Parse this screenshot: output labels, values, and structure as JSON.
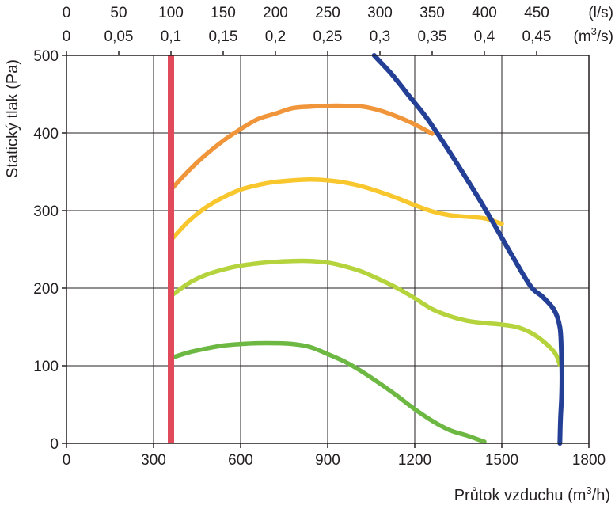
{
  "chart_data": {
    "type": "line",
    "title": "",
    "xlabel": {
      "text": "Průtok vzduchu (m",
      "sup": "3",
      "end": "/h)"
    },
    "ylabel": "Statický tlak (Pa)",
    "xlim": [
      0,
      1800
    ],
    "ylim": [
      0,
      500
    ],
    "grid": true,
    "x_ticks": [
      "0",
      "300",
      "600",
      "900",
      "1200",
      "1500",
      "1800"
    ],
    "x_tick_values": [
      0,
      300,
      600,
      900,
      1200,
      1500,
      1800
    ],
    "y_ticks": [
      "0",
      "100",
      "200",
      "300",
      "400",
      "500"
    ],
    "y_tick_values": [
      0,
      100,
      200,
      300,
      400,
      500
    ],
    "top_axis_ls": {
      "unit": "(l/s)",
      "ticks": [
        "0",
        "50",
        "100",
        "150",
        "200",
        "250",
        "300",
        "350",
        "400",
        "450"
      ],
      "tick_values": [
        0,
        50,
        100,
        150,
        200,
        250,
        300,
        350,
        400,
        450
      ]
    },
    "top_axis_m3s": {
      "unit": {
        "text": "(m",
        "sup": "3",
        "end": "/s)"
      },
      "ticks": [
        "0",
        "0,05",
        "0,1",
        "0,15",
        "0,2",
        "0,25",
        "0,3",
        "0,35",
        "0,4",
        "0,45"
      ],
      "tick_values": [
        0,
        0.05,
        0.1,
        0.15,
        0.2,
        0.25,
        0.3,
        0.35,
        0.4,
        0.45
      ]
    },
    "vertical_marker": {
      "x": 360,
      "color": "#e04a5a"
    },
    "series": [
      {
        "color": "#f0953a",
        "x": [
          360,
          420,
          480,
          540,
          600,
          660,
          720,
          780,
          840,
          900,
          960,
          1020,
          1080,
          1140,
          1200,
          1260
        ],
        "y": [
          327,
          351,
          372,
          390,
          405,
          418,
          425,
          432,
          434,
          435,
          435,
          434,
          429,
          421,
          411,
          399
        ]
      },
      {
        "color": "#f8c72e",
        "x": [
          360,
          420,
          480,
          540,
          600,
          660,
          720,
          780,
          840,
          900,
          960,
          1020,
          1080,
          1140,
          1200,
          1260,
          1320,
          1380,
          1440,
          1500
        ],
        "y": [
          262,
          286,
          304,
          317,
          327,
          333,
          337,
          339,
          340,
          339,
          336,
          331,
          324,
          316,
          307,
          299,
          294,
          292,
          290,
          283
        ]
      },
      {
        "color": "#b5d33c",
        "x": [
          360,
          420,
          480,
          540,
          600,
          660,
          720,
          780,
          840,
          900,
          960,
          1020,
          1080,
          1140,
          1200,
          1260,
          1320,
          1380,
          1440,
          1500,
          1560,
          1620,
          1680,
          1700
        ],
        "y": [
          190,
          206,
          217,
          224,
          229,
          232,
          234,
          235,
          235,
          233,
          228,
          221,
          211,
          200,
          187,
          173,
          164,
          158,
          155,
          153,
          149,
          138,
          118,
          101
        ]
      },
      {
        "color": "#6cb843",
        "x": [
          360,
          420,
          480,
          540,
          600,
          660,
          720,
          780,
          840,
          900,
          960,
          1020,
          1080,
          1140,
          1200,
          1260,
          1320,
          1380,
          1440
        ],
        "y": [
          110,
          117,
          122,
          126,
          128,
          129,
          129,
          128,
          124,
          115,
          105,
          92,
          77,
          61,
          44,
          29,
          17,
          10,
          2
        ]
      },
      {
        "color": "#233f96",
        "x": [
          1060,
          1120,
          1180,
          1240,
          1300,
          1360,
          1420,
          1480,
          1540,
          1600,
          1640,
          1680,
          1700,
          1705,
          1707,
          1706,
          1702,
          1700
        ],
        "y": [
          500,
          476,
          448,
          420,
          387,
          352,
          316,
          278,
          239,
          202,
          189,
          172,
          150,
          120,
          90,
          60,
          30,
          0
        ]
      }
    ]
  }
}
